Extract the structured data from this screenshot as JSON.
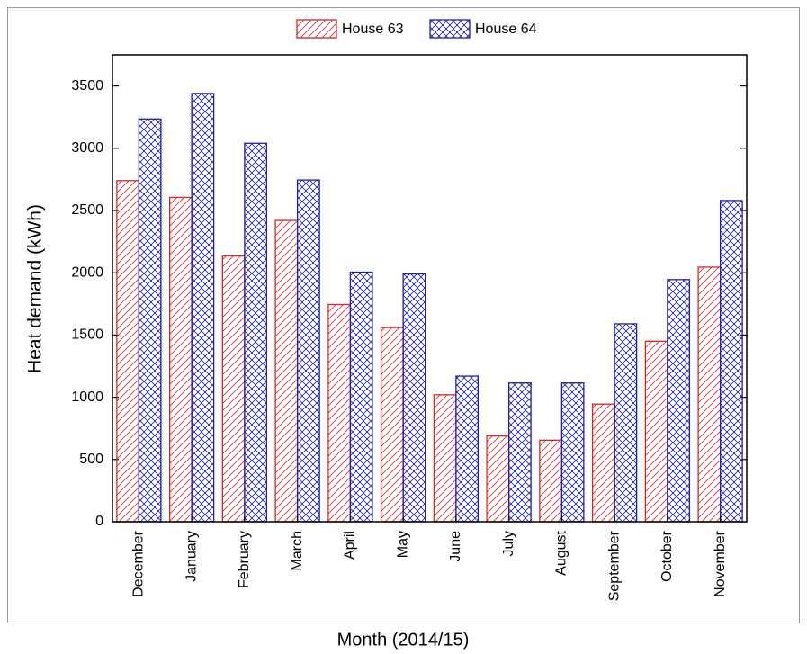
{
  "chart_data": {
    "type": "bar",
    "x_label": "Month (2014/15)",
    "y_label": "Heat demand (kWh)",
    "categories": [
      "December",
      "January",
      "February",
      "March",
      "April",
      "May",
      "June",
      "July",
      "August",
      "September",
      "October",
      "November"
    ],
    "series": [
      {
        "name": "House 63",
        "color": "#d62728",
        "hatch": "/",
        "values": [
          2740,
          2605,
          2135,
          2420,
          1745,
          1560,
          1020,
          690,
          655,
          945,
          1450,
          2045
        ]
      },
      {
        "name": "House 64",
        "color": "#1f1fa8",
        "hatch": "x",
        "values": [
          3235,
          3440,
          3040,
          2745,
          2005,
          1990,
          1170,
          1115,
          1115,
          1590,
          1945,
          2580
        ]
      }
    ],
    "ylim": [
      0,
      3750
    ],
    "yticks": [
      0,
      500,
      1000,
      1500,
      2000,
      2500,
      3000,
      3500
    ],
    "legend": "top"
  }
}
